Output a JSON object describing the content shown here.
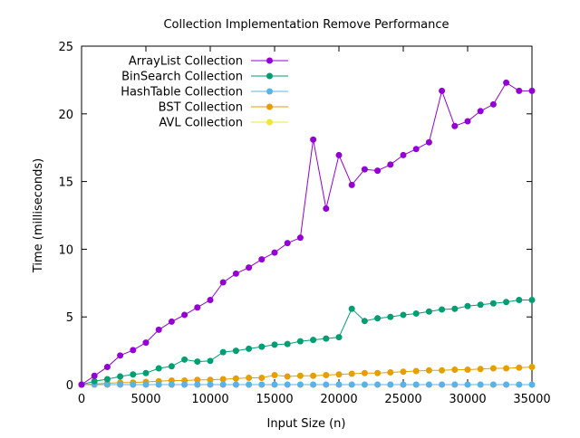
{
  "chart_data": {
    "type": "line",
    "title": "Collection Implementation Remove Performance",
    "xlabel": "Input Size (n)",
    "ylabel": "Time (milliseconds)",
    "xlim": [
      0,
      35000
    ],
    "ylim": [
      0,
      25
    ],
    "xticks": [
      0,
      5000,
      10000,
      15000,
      20000,
      25000,
      30000,
      35000
    ],
    "yticks": [
      0,
      5,
      10,
      15,
      20,
      25
    ],
    "grid": false,
    "legend_position": "top-left",
    "x": [
      0,
      1000,
      2000,
      3000,
      4000,
      5000,
      6000,
      7000,
      8000,
      9000,
      10000,
      11000,
      12000,
      13000,
      14000,
      15000,
      16000,
      17000,
      18000,
      19000,
      20000,
      21000,
      22000,
      23000,
      24000,
      25000,
      26000,
      27000,
      28000,
      29000,
      30000,
      31000,
      32000,
      33000,
      34000,
      35000
    ],
    "series": [
      {
        "name": "ArrayList Collection",
        "color": "#9400d3",
        "values": [
          0.0,
          0.65,
          1.3,
          2.15,
          2.55,
          3.1,
          4.05,
          4.65,
          5.15,
          5.7,
          6.25,
          7.55,
          8.2,
          8.65,
          9.25,
          9.75,
          10.45,
          10.85,
          18.1,
          13.0,
          16.95,
          14.75,
          15.9,
          15.8,
          16.25,
          16.95,
          17.4,
          17.9,
          21.7,
          19.1,
          19.45,
          20.2,
          20.7,
          22.3,
          21.7,
          21.7
        ]
      },
      {
        "name": "BinSearch Collection",
        "color": "#009e73",
        "values": [
          0.0,
          0.25,
          0.4,
          0.6,
          0.75,
          0.85,
          1.2,
          1.35,
          1.85,
          1.7,
          1.75,
          2.4,
          2.5,
          2.65,
          2.8,
          2.95,
          3.0,
          3.2,
          3.3,
          3.4,
          3.5,
          5.6,
          4.7,
          4.9,
          5.0,
          5.15,
          5.25,
          5.4,
          5.55,
          5.6,
          5.8,
          5.9,
          6.0,
          6.1,
          6.25,
          6.25
        ]
      },
      {
        "name": "HashTable Collection",
        "color": "#56b4e9",
        "values": [
          0,
          0,
          0,
          0,
          0,
          0,
          0,
          0,
          0,
          0,
          0,
          0,
          0,
          0,
          0,
          0,
          0,
          0,
          0,
          0,
          0,
          0,
          0,
          0,
          0,
          0,
          0,
          0,
          0,
          0,
          0,
          0,
          0,
          0,
          0,
          0
        ]
      },
      {
        "name": "BST Collection",
        "color": "#e69f00",
        "values": [
          0.0,
          0.05,
          0.1,
          0.15,
          0.15,
          0.2,
          0.25,
          0.3,
          0.3,
          0.35,
          0.35,
          0.4,
          0.45,
          0.5,
          0.5,
          0.7,
          0.6,
          0.65,
          0.65,
          0.7,
          0.75,
          0.8,
          0.85,
          0.85,
          0.9,
          0.95,
          1.0,
          1.05,
          1.05,
          1.1,
          1.1,
          1.15,
          1.2,
          1.2,
          1.25,
          1.3
        ]
      },
      {
        "name": "AVL Collection",
        "color": "#f0e442",
        "values": [
          0,
          0,
          0,
          0,
          0,
          0,
          0,
          0,
          0,
          0,
          0,
          0,
          0,
          0,
          0,
          0,
          0,
          0,
          0,
          0,
          0,
          0,
          0,
          0,
          0,
          0,
          0,
          0,
          0,
          0,
          0,
          0,
          0,
          0,
          0,
          0
        ]
      }
    ]
  }
}
